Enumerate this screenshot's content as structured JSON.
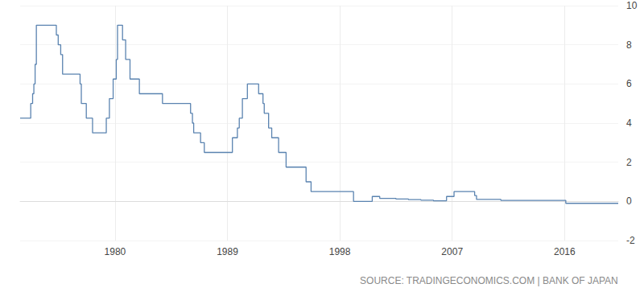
{
  "chart_data": {
    "type": "line",
    "color": "#5a83b0",
    "line_style": "step",
    "x": [
      1972.4,
      1973.25,
      1973.4,
      1973.5,
      1973.6,
      1973.7,
      1975.3,
      1975.45,
      1975.65,
      1975.8,
      1977.2,
      1977.3,
      1977.7,
      1978.2,
      1979.3,
      1979.55,
      1979.85,
      1980.1,
      1980.2,
      1980.6,
      1980.85,
      1981.2,
      1981.95,
      1983.8,
      1986.05,
      1986.2,
      1986.3,
      1986.85,
      1987.15,
      1989.4,
      1989.8,
      1989.95,
      1990.2,
      1990.6,
      1991.5,
      1991.85,
      1991.95,
      1992.3,
      1992.55,
      1993.1,
      1993.7,
      1995.3,
      1995.7,
      1999.1,
      2000.6,
      2001.2,
      2002.5,
      2003.5,
      2004.5,
      2005.5,
      2006.55,
      2007.15,
      2008.8,
      2008.95,
      2010.9,
      2016.1,
      2020.3
    ],
    "values": [
      4.25,
      5.0,
      5.5,
      6.0,
      7.0,
      9.0,
      8.5,
      8.0,
      7.5,
      6.5,
      6.0,
      5.0,
      4.25,
      3.5,
      4.25,
      5.25,
      6.25,
      7.25,
      9.0,
      8.25,
      7.25,
      6.25,
      5.5,
      5.0,
      4.5,
      4.0,
      3.5,
      3.0,
      2.5,
      3.25,
      3.75,
      4.25,
      5.25,
      6.0,
      5.5,
      5.0,
      4.5,
      3.75,
      3.25,
      2.5,
      1.75,
      1.0,
      0.5,
      0.0,
      0.25,
      0.15,
      0.12,
      0.09,
      0.06,
      0.03,
      0.25,
      0.5,
      0.3,
      0.1,
      0.05,
      -0.1,
      -0.1
    ],
    "xlim": [
      1972.4,
      2020.3
    ],
    "xticks": [
      1980,
      1989,
      1998,
      2007,
      2016
    ],
    "ylim": [
      -2,
      10
    ],
    "yticks": [
      -2,
      0,
      2,
      4,
      6,
      8,
      10
    ],
    "grid": true,
    "annotations": [
      "SOURCE: TRADINGECONOMICS.COM | BANK OF JAPAN"
    ]
  }
}
